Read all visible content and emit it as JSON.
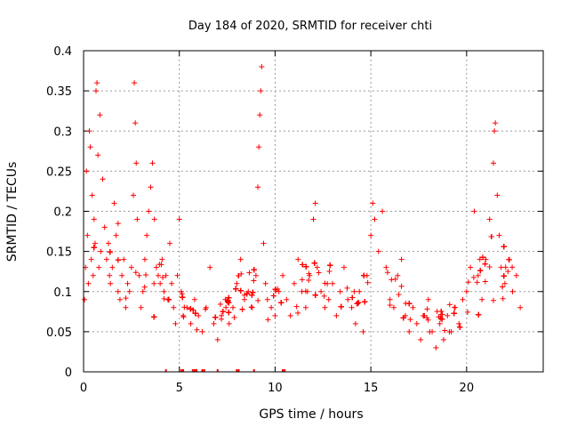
{
  "chart_data": {
    "type": "scatter",
    "title": "Day 184 of 2020, SRMTID for receiver chti",
    "xlabel": "GPS time / hours",
    "ylabel": "SRMTID / TECUs",
    "xlim": [
      0,
      24
    ],
    "ylim": [
      0,
      0.4
    ],
    "xticks": [
      0,
      5,
      10,
      15,
      20
    ],
    "yticks": [
      0,
      0.05,
      0.1,
      0.15,
      0.2,
      0.25,
      0.3,
      0.35,
      0.4
    ],
    "xtick_labels": [
      "0",
      "5",
      "10",
      "15",
      "20"
    ],
    "ytick_labels": [
      "0",
      "0.05",
      "0.1",
      "0.15",
      "0.2",
      "0.25",
      "0.3",
      "0.35",
      "0.4"
    ],
    "grid": true,
    "marker": "plus",
    "color": "#ff0000",
    "envelope_description_hours": [
      0,
      1,
      2,
      3,
      4,
      5,
      6,
      7,
      8,
      9,
      10,
      11,
      12,
      13,
      14,
      15,
      16,
      17,
      18,
      19,
      20,
      21,
      22,
      22.8
    ],
    "envelope_mean": [
      0.13,
      0.15,
      0.13,
      0.11,
      0.12,
      0.09,
      0.07,
      0.07,
      0.09,
      0.1,
      0.09,
      0.11,
      0.1,
      0.1,
      0.09,
      0.1,
      0.1,
      0.07,
      0.06,
      0.06,
      0.09,
      0.12,
      0.12,
      0.1
    ],
    "series": [
      {
        "name": "SRMTID",
        "points": [
          [
            0.05,
            0.09
          ],
          [
            0.1,
            0.13
          ],
          [
            0.15,
            0.25
          ],
          [
            0.2,
            0.17
          ],
          [
            0.25,
            0.11
          ],
          [
            0.3,
            0.3
          ],
          [
            0.35,
            0.28
          ],
          [
            0.4,
            0.14
          ],
          [
            0.45,
            0.22
          ],
          [
            0.5,
            0.12
          ],
          [
            0.55,
            0.19
          ],
          [
            0.6,
            0.16
          ],
          [
            0.65,
            0.35
          ],
          [
            0.7,
            0.36
          ],
          [
            0.75,
            0.27
          ],
          [
            0.8,
            0.13
          ],
          [
            0.85,
            0.32
          ],
          [
            0.9,
            0.15
          ],
          [
            1.0,
            0.24
          ],
          [
            1.1,
            0.18
          ],
          [
            1.2,
            0.14
          ],
          [
            1.3,
            0.16
          ],
          [
            1.4,
            0.11
          ],
          [
            1.5,
            0.13
          ],
          [
            1.6,
            0.21
          ],
          [
            1.7,
            0.17
          ],
          [
            1.8,
            0.1
          ],
          [
            1.9,
            0.09
          ],
          [
            2.0,
            0.12
          ],
          [
            2.1,
            0.14
          ],
          [
            2.2,
            0.08
          ],
          [
            2.3,
            0.11
          ],
          [
            2.4,
            0.1
          ],
          [
            2.5,
            0.13
          ],
          [
            2.6,
            0.22
          ],
          [
            2.65,
            0.36
          ],
          [
            2.7,
            0.31
          ],
          [
            2.75,
            0.26
          ],
          [
            2.8,
            0.19
          ],
          [
            2.9,
            0.12
          ],
          [
            3.0,
            0.08
          ],
          [
            3.1,
            0.1
          ],
          [
            3.2,
            0.14
          ],
          [
            3.3,
            0.17
          ],
          [
            3.4,
            0.2
          ],
          [
            3.5,
            0.23
          ],
          [
            3.6,
            0.26
          ],
          [
            3.7,
            0.19
          ],
          [
            3.8,
            0.13
          ],
          [
            3.9,
            0.12
          ],
          [
            4.0,
            0.11
          ],
          [
            4.1,
            0.14
          ],
          [
            4.2,
            0.1
          ],
          [
            4.3,
            0.12
          ],
          [
            4.4,
            0.09
          ],
          [
            4.5,
            0.16
          ],
          [
            4.6,
            0.11
          ],
          [
            4.7,
            0.08
          ],
          [
            4.8,
            0.06
          ],
          [
            4.9,
            0.12
          ],
          [
            5.0,
            0.19
          ],
          [
            5.1,
            0.1
          ],
          [
            5.2,
            0.07
          ],
          [
            5.4,
            0.08
          ],
          [
            5.6,
            0.06
          ],
          [
            5.8,
            0.09
          ],
          [
            6.0,
            0.07
          ],
          [
            6.2,
            0.05
          ],
          [
            6.4,
            0.08
          ],
          [
            6.6,
            0.13
          ],
          [
            6.8,
            0.06
          ],
          [
            7.0,
            0.04
          ],
          [
            7.2,
            0.07
          ],
          [
            7.4,
            0.09
          ],
          [
            7.6,
            0.06
          ],
          [
            7.8,
            0.08
          ],
          [
            8.0,
            0.11
          ],
          [
            8.2,
            0.14
          ],
          [
            8.4,
            0.09
          ],
          [
            8.6,
            0.1
          ],
          [
            8.8,
            0.08
          ],
          [
            9.0,
            0.12
          ],
          [
            9.1,
            0.23
          ],
          [
            9.15,
            0.28
          ],
          [
            9.2,
            0.32
          ],
          [
            9.25,
            0.35
          ],
          [
            9.3,
            0.38
          ],
          [
            9.4,
            0.16
          ],
          [
            9.5,
            0.11
          ],
          [
            9.6,
            0.09
          ],
          [
            9.8,
            0.08
          ],
          [
            10.0,
            0.07
          ],
          [
            10.2,
            0.1
          ],
          [
            10.4,
            0.12
          ],
          [
            10.6,
            0.09
          ],
          [
            10.8,
            0.07
          ],
          [
            11.0,
            0.11
          ],
          [
            11.2,
            0.14
          ],
          [
            11.4,
            0.1
          ],
          [
            11.6,
            0.08
          ],
          [
            11.8,
            0.12
          ],
          [
            12.0,
            0.19
          ],
          [
            12.1,
            0.21
          ],
          [
            12.2,
            0.13
          ],
          [
            12.4,
            0.1
          ],
          [
            12.6,
            0.08
          ],
          [
            12.8,
            0.09
          ],
          [
            13.0,
            0.11
          ],
          [
            13.2,
            0.07
          ],
          [
            13.4,
            0.1
          ],
          [
            13.6,
            0.13
          ],
          [
            13.8,
            0.09
          ],
          [
            14.0,
            0.08
          ],
          [
            14.2,
            0.06
          ],
          [
            14.4,
            0.1
          ],
          [
            14.6,
            0.05
          ],
          [
            14.8,
            0.12
          ],
          [
            15.0,
            0.17
          ],
          [
            15.1,
            0.21
          ],
          [
            15.2,
            0.19
          ],
          [
            15.4,
            0.15
          ],
          [
            15.6,
            0.2
          ],
          [
            15.8,
            0.13
          ],
          [
            16.0,
            0.09
          ],
          [
            16.2,
            0.08
          ],
          [
            16.4,
            0.12
          ],
          [
            16.6,
            0.14
          ],
          [
            16.8,
            0.07
          ],
          [
            17.0,
            0.05
          ],
          [
            17.2,
            0.08
          ],
          [
            17.4,
            0.06
          ],
          [
            17.6,
            0.04
          ],
          [
            17.8,
            0.07
          ],
          [
            18.0,
            0.09
          ],
          [
            18.2,
            0.05
          ],
          [
            18.4,
            0.03
          ],
          [
            18.6,
            0.06
          ],
          [
            18.8,
            0.04
          ],
          [
            19.0,
            0.07
          ],
          [
            19.2,
            0.05
          ],
          [
            19.4,
            0.08
          ],
          [
            19.6,
            0.06
          ],
          [
            19.8,
            0.09
          ],
          [
            20.0,
            0.1
          ],
          [
            20.2,
            0.13
          ],
          [
            20.4,
            0.2
          ],
          [
            20.6,
            0.12
          ],
          [
            20.8,
            0.09
          ],
          [
            21.0,
            0.14
          ],
          [
            21.2,
            0.19
          ],
          [
            21.4,
            0.26
          ],
          [
            21.45,
            0.3
          ],
          [
            21.5,
            0.31
          ],
          [
            21.6,
            0.22
          ],
          [
            21.7,
            0.17
          ],
          [
            21.8,
            0.13
          ],
          [
            22.0,
            0.11
          ],
          [
            22.2,
            0.14
          ],
          [
            22.4,
            0.1
          ],
          [
            22.6,
            0.12
          ],
          [
            22.8,
            0.08
          ]
        ]
      }
    ],
    "zero_markers_hours": [
      4.3,
      5.1,
      5.2,
      5.7,
      5.8,
      5.9,
      6.2,
      6.3,
      7.0,
      8.0,
      8.1,
      8.9,
      10.4,
      10.5
    ]
  }
}
